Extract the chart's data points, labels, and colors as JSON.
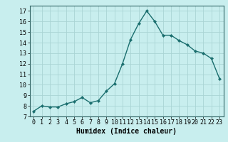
{
  "x": [
    0,
    1,
    2,
    3,
    4,
    5,
    6,
    7,
    8,
    9,
    10,
    11,
    12,
    13,
    14,
    15,
    16,
    17,
    18,
    19,
    20,
    21,
    22,
    23
  ],
  "y": [
    7.5,
    8.0,
    7.9,
    7.9,
    8.2,
    8.4,
    8.8,
    8.3,
    8.5,
    9.4,
    10.1,
    12.0,
    14.3,
    15.8,
    17.0,
    16.0,
    14.7,
    14.7,
    14.2,
    13.8,
    13.2,
    13.0,
    12.5,
    10.6
  ],
  "xlabel": "Humidex (Indice chaleur)",
  "bg_color": "#c8eeee",
  "line_color": "#1a6e6e",
  "marker_color": "#1a6e6e",
  "grid_color": "#aad4d4",
  "xlim": [
    -0.5,
    23.5
  ],
  "ylim": [
    7,
    17.5
  ],
  "yticks": [
    7,
    8,
    9,
    10,
    11,
    12,
    13,
    14,
    15,
    16,
    17
  ],
  "xticks": [
    0,
    1,
    2,
    3,
    4,
    5,
    6,
    7,
    8,
    9,
    10,
    11,
    12,
    13,
    14,
    15,
    16,
    17,
    18,
    19,
    20,
    21,
    22,
    23
  ],
  "tick_fontsize": 6.0,
  "xlabel_fontsize": 7.0,
  "line_width": 1.0,
  "marker_size": 2.2
}
